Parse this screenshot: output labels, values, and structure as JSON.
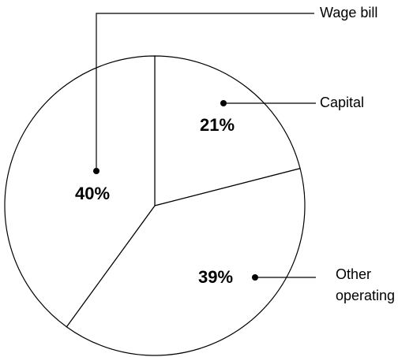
{
  "chart_data": {
    "type": "pie",
    "categories": [
      "Capital",
      "Other operating",
      "Wage bill"
    ],
    "values": [
      21,
      39,
      40
    ],
    "value_labels": [
      "21%",
      "39%",
      "40%"
    ],
    "colors": [
      "#ffffff",
      "#ffffff",
      "#ffffff"
    ],
    "start_angle": 0,
    "direction": "clockwise"
  }
}
